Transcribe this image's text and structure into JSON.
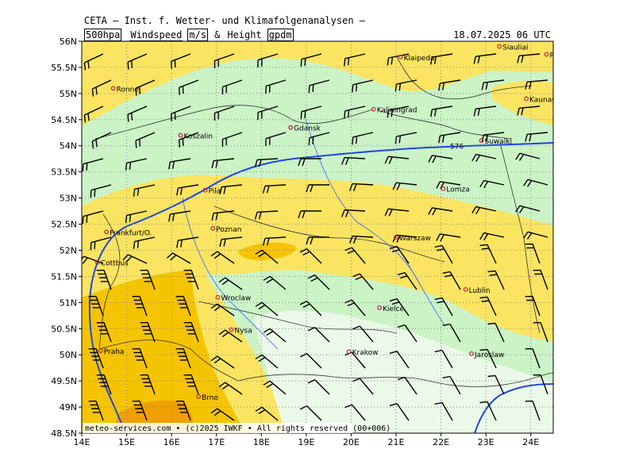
{
  "header": {
    "source_line": "CETA – Inst. f. Wetter- und Klimafolgenanalysen –",
    "product": [
      "500hpa",
      "Windspeed",
      "m/s",
      "&",
      "Height",
      "gpdm"
    ],
    "valid_time": "18.07.2025 06 UTC"
  },
  "footer": "meteo-services.com • (c)2025 IWKF • All rights reserved (00+006)",
  "axes": {
    "lat_ticks": [
      "56N",
      "55.5N",
      "55N",
      "54.5N",
      "54N",
      "53.5N",
      "53N",
      "52.5N",
      "52N",
      "51.5N",
      "51N",
      "50.5N",
      "50N",
      "49.5N",
      "49N",
      "48.5N"
    ],
    "lon_ticks": [
      "14E",
      "15E",
      "16E",
      "17E",
      "18E",
      "19E",
      "20E",
      "21E",
      "22E",
      "23E",
      "24E"
    ],
    "lon_range": [
      14,
      24.5
    ],
    "lat_range": [
      48.5,
      56
    ]
  },
  "contours": [
    {
      "label": "576",
      "lon": 22.2,
      "lat": 54.0
    },
    {
      "label": "",
      "lon": 15.0,
      "lat": 52.0
    }
  ],
  "colors": {
    "calm": "#ebf9e8",
    "light_green": "#cbf3c6",
    "yellow": "#fbe461",
    "orange": "#f5c400",
    "dark_orange": "#f0a000",
    "height_contour": "#1f46e0",
    "city": "#c8203c"
  },
  "cities": [
    {
      "name": "Ronne",
      "lon": 14.7,
      "lat": 55.1
    },
    {
      "name": "Klaipeda",
      "lon": 21.1,
      "lat": 55.7
    },
    {
      "name": "Siauliai",
      "lon": 23.3,
      "lat": 55.9
    },
    {
      "name": "Panevezys",
      "lon": 24.35,
      "lat": 55.75
    },
    {
      "name": "Kaunas",
      "lon": 23.9,
      "lat": 54.9
    },
    {
      "name": "Kaliningrad",
      "lon": 20.5,
      "lat": 54.7
    },
    {
      "name": "Gdansk",
      "lon": 18.65,
      "lat": 54.35
    },
    {
      "name": "Koszalin",
      "lon": 16.2,
      "lat": 54.2
    },
    {
      "name": "Suwalki",
      "lon": 22.9,
      "lat": 54.1
    },
    {
      "name": "Pila",
      "lon": 16.75,
      "lat": 53.15
    },
    {
      "name": "Lomza",
      "lon": 22.05,
      "lat": 53.18
    },
    {
      "name": "Frankfurt/O.",
      "lon": 14.55,
      "lat": 52.35
    },
    {
      "name": "Poznan",
      "lon": 16.92,
      "lat": 52.42
    },
    {
      "name": "Warszaw",
      "lon": 21.0,
      "lat": 52.25
    },
    {
      "name": "Cottbus",
      "lon": 14.35,
      "lat": 51.77
    },
    {
      "name": "Lublin",
      "lon": 22.55,
      "lat": 51.25
    },
    {
      "name": "Wroclaw",
      "lon": 17.03,
      "lat": 51.1
    },
    {
      "name": "Kielce",
      "lon": 20.63,
      "lat": 50.9
    },
    {
      "name": "Nysa",
      "lon": 17.33,
      "lat": 50.48
    },
    {
      "name": "Praha",
      "lon": 14.42,
      "lat": 50.08
    },
    {
      "name": "Krakow",
      "lon": 19.95,
      "lat": 50.06
    },
    {
      "name": "Jaroslaw",
      "lon": 22.68,
      "lat": 50.02
    },
    {
      "name": "Brno",
      "lon": 16.6,
      "lat": 49.2
    }
  ]
}
